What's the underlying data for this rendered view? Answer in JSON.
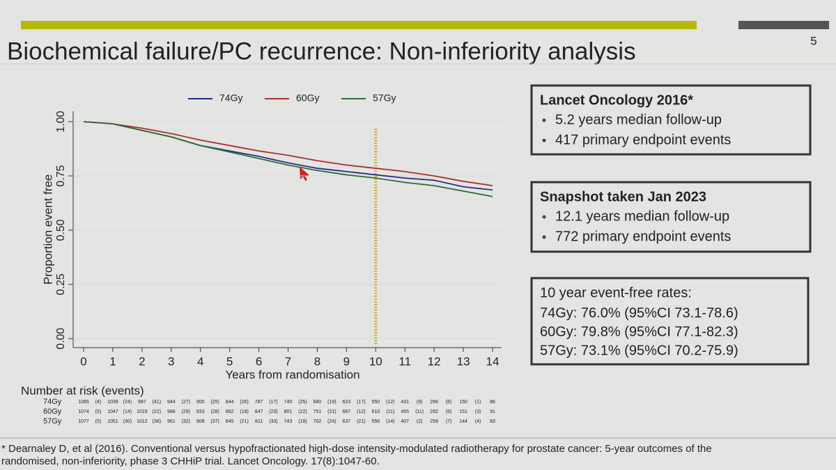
{
  "slide": {
    "page_number": 5,
    "title": "Biochemical failure/PC recurrence: Non-inferiority analysis",
    "footnote": [
      "* Dearnaley D, et al (2016). Conventional versus hypofractionated high-dose intensity-modulated radiotherapy for prostate cancer: 5-year outcomes of the",
      "randomised, non-inferiority, phase 3 CHHiP trial. Lancet Oncology. 17(8):1047-60."
    ],
    "boxes": [
      {
        "title": "Lancet Oncology 2016*",
        "items": [
          "5.2 years median follow-up",
          "417 primary endpoint events"
        ]
      },
      {
        "title": "Snapshot taken Jan 2023",
        "items": [
          "12.1 years median follow-up",
          "772 primary endpoint events"
        ]
      }
    ],
    "rates": {
      "title": "10 year event-free rates:",
      "lines": [
        {
          "text": "74Gy: 76.0% (95%CI 73.1-78.6)",
          "color": "#1f2f86"
        },
        {
          "text": "60Gy: 79.8% (95%CI 77.1-82.3)",
          "color": "#a8302e"
        },
        {
          "text": "57Gy: 73.1% (95%CI 70.2-75.9)",
          "color": "#2e6b34"
        }
      ]
    }
  },
  "risk_table": {
    "title": "Number at risk (events)",
    "rows": [
      {
        "label": "74Gy",
        "at_risk": [
          1065,
          1039,
          997,
          944,
          900,
          844,
          787,
          740,
          680,
          623,
          550,
          431,
          266,
          150,
          86
        ],
        "events": [
          "(4)",
          "(24)",
          "(41)",
          "(27)",
          "(25)",
          "(26)",
          "(17)",
          "(25)",
          "(19)",
          "(17)",
          "(12)",
          "(9)",
          "(6)",
          "(1)"
        ]
      },
      {
        "label": "60Gy",
        "at_risk": [
          1074,
          1047,
          1019,
          986,
          933,
          882,
          847,
          801,
          751,
          687,
          610,
          455,
          282,
          151,
          91
        ],
        "events": [
          "(5)",
          "(14)",
          "(22)",
          "(29)",
          "(28)",
          "(18)",
          "(23)",
          "(22)",
          "(21)",
          "(12)",
          "(11)",
          "(11)",
          "(6)",
          "(3)"
        ]
      },
      {
        "label": "57Gy",
        "at_risk": [
          1077,
          1051,
          1012,
          961,
          908,
          845,
          811,
          743,
          702,
          637,
          556,
          407,
          259,
          144,
          83
        ],
        "events": [
          "(5)",
          "(30)",
          "(38)",
          "(32)",
          "(37)",
          "(21)",
          "(33)",
          "(18)",
          "(24)",
          "(21)",
          "(14)",
          "(2)",
          "(7)",
          "(4)"
        ]
      }
    ]
  },
  "chart_data": {
    "type": "line",
    "xlabel": "Years from randomisation",
    "ylabel": "Proportion event free",
    "x": [
      0,
      1,
      2,
      3,
      4,
      5,
      6,
      7,
      8,
      9,
      10,
      11,
      12,
      13,
      14
    ],
    "series": [
      {
        "name": "74Gy",
        "color": "#1f2f86",
        "values": [
          1.0,
          0.99,
          0.96,
          0.93,
          0.89,
          0.865,
          0.84,
          0.81,
          0.785,
          0.77,
          0.755,
          0.74,
          0.73,
          0.7,
          0.685
        ]
      },
      {
        "name": "60Gy",
        "color": "#a8302e",
        "values": [
          1.0,
          0.99,
          0.97,
          0.945,
          0.915,
          0.89,
          0.865,
          0.845,
          0.82,
          0.8,
          0.785,
          0.77,
          0.75,
          0.725,
          0.705
        ]
      },
      {
        "name": "57Gy",
        "color": "#2e6b34",
        "values": [
          1.0,
          0.99,
          0.96,
          0.93,
          0.89,
          0.86,
          0.83,
          0.8,
          0.775,
          0.755,
          0.74,
          0.72,
          0.705,
          0.68,
          0.655
        ]
      }
    ],
    "xlim": [
      0,
      14
    ],
    "ylim": [
      0,
      1
    ],
    "xticks": [
      0,
      1,
      2,
      3,
      4,
      5,
      6,
      7,
      8,
      9,
      10,
      11,
      12,
      13,
      14
    ],
    "yticks": [
      {
        "value": 0,
        "label": "0.00"
      },
      {
        "value": 0.25,
        "label": "0.25"
      },
      {
        "value": 0.5,
        "label": "0.50"
      },
      {
        "value": 0.75,
        "label": "0.75"
      },
      {
        "value": 1,
        "label": "1.00"
      }
    ],
    "reference_line_x": 10
  }
}
